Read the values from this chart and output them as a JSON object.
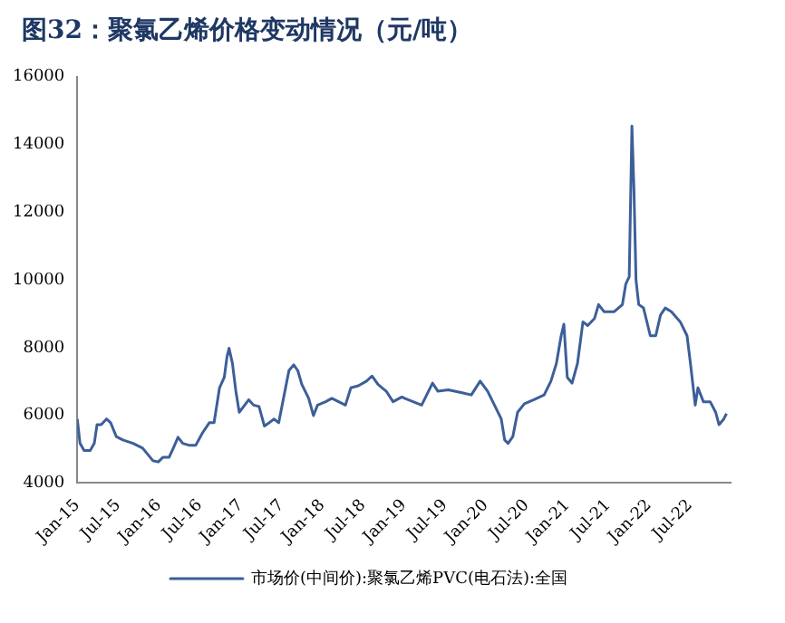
{
  "chart_data": {
    "type": "line",
    "title": "图32：聚氯乙烯价格变动情况（元/吨）",
    "x": [
      "2015-01-01",
      "2015-01-13",
      "2015-02-01",
      "2015-02-28",
      "2015-03-16",
      "2015-03-28",
      "2015-04-16",
      "2015-05-10",
      "2015-05-28",
      "2015-06-23",
      "2015-07-22",
      "2015-09-07",
      "2015-10-19",
      "2015-12-04",
      "2015-12-28",
      "2016-01-19",
      "2016-02-16",
      "2016-03-07",
      "2016-03-25",
      "2016-04-16",
      "2016-05-16",
      "2016-06-13",
      "2016-07-13",
      "2016-08-13",
      "2016-09-04",
      "2016-09-28",
      "2016-10-19",
      "2016-11-01",
      "2016-11-10",
      "2016-11-25",
      "2016-12-10",
      "2016-12-25",
      "2017-01-19",
      "2017-02-07",
      "2017-02-28",
      "2017-03-22",
      "2017-04-16",
      "2017-05-07",
      "2017-05-28",
      "2017-06-19",
      "2017-07-13",
      "2017-08-04",
      "2017-08-25",
      "2017-09-13",
      "2017-10-01",
      "2017-11-01",
      "2017-11-22",
      "2017-12-10",
      "2018-01-16",
      "2018-02-13",
      "2018-03-13",
      "2018-04-13",
      "2018-05-07",
      "2018-06-10",
      "2018-07-16",
      "2018-08-10",
      "2018-09-07",
      "2018-10-13",
      "2018-11-13",
      "2018-12-22",
      "2019-01-04",
      "2019-03-19",
      "2019-05-07",
      "2019-06-01",
      "2019-07-16",
      "2019-09-13",
      "2019-10-28",
      "2019-12-07",
      "2020-01-10",
      "2020-02-10",
      "2020-03-10",
      "2020-03-25",
      "2020-04-10",
      "2020-05-01",
      "2020-05-22",
      "2020-06-22",
      "2020-08-04",
      "2020-09-19",
      "2020-10-19",
      "2020-11-13",
      "2020-12-04",
      "2020-12-16",
      "2021-01-01",
      "2021-01-22",
      "2021-02-16",
      "2021-03-10",
      "2021-04-01",
      "2021-05-01",
      "2021-05-19",
      "2021-06-13",
      "2021-07-28",
      "2021-09-04",
      "2021-09-19",
      "2021-10-04",
      "2021-10-16",
      "2021-10-25",
      "2021-11-04",
      "2021-11-16",
      "2021-12-07",
      "2022-01-07",
      "2022-02-01",
      "2022-02-22",
      "2022-03-13",
      "2022-04-10",
      "2022-05-19",
      "2022-06-19",
      "2022-07-04",
      "2022-07-25",
      "2022-08-07",
      "2022-09-01",
      "2022-10-01",
      "2022-10-25",
      "2022-11-10",
      "2022-12-01",
      "2022-12-13"
    ],
    "series": [
      {
        "name": "市场价(中间价):聚氯乙烯PVC(电石法):全国",
        "color": "#3c5f99",
        "values": [
          5890,
          5170,
          4960,
          4960,
          5170,
          5720,
          5720,
          5890,
          5780,
          5370,
          5270,
          5170,
          5030,
          4660,
          4620,
          4760,
          4760,
          5070,
          5350,
          5170,
          5110,
          5110,
          5480,
          5780,
          5780,
          6810,
          7120,
          7730,
          7980,
          7530,
          6710,
          6090,
          6300,
          6460,
          6300,
          6260,
          5680,
          5780,
          5890,
          5780,
          6600,
          7320,
          7490,
          7320,
          6910,
          6500,
          5990,
          6300,
          6400,
          6500,
          6400,
          6300,
          6810,
          6870,
          7010,
          7160,
          6910,
          6710,
          6400,
          6540,
          6500,
          6300,
          6950,
          6710,
          6750,
          6670,
          6600,
          7010,
          6710,
          6300,
          5890,
          5270,
          5170,
          5370,
          6090,
          6340,
          6460,
          6600,
          7010,
          7530,
          8350,
          8690,
          7120,
          6950,
          7530,
          8760,
          8650,
          8860,
          9270,
          9060,
          9060,
          9270,
          9880,
          10090,
          14540,
          12650,
          9990,
          9270,
          9170,
          8350,
          8350,
          8960,
          9170,
          9060,
          8760,
          8350,
          7530,
          6300,
          6810,
          6400,
          6400,
          6090,
          5720,
          5890,
          6050
        ]
      }
    ],
    "xlim": [
      "2015-01-01",
      "2022-12-31"
    ],
    "xticks": [
      {
        "value": "2015-01",
        "label": "Jan-15"
      },
      {
        "value": "2015-07",
        "label": "Jul-15"
      },
      {
        "value": "2016-01",
        "label": "Jan-16"
      },
      {
        "value": "2016-07",
        "label": "Jul-16"
      },
      {
        "value": "2017-01",
        "label": "Jan-17"
      },
      {
        "value": "2017-07",
        "label": "Jul-17"
      },
      {
        "value": "2018-01",
        "label": "Jan-18"
      },
      {
        "value": "2018-07",
        "label": "Jul-18"
      },
      {
        "value": "2019-01",
        "label": "Jan-19"
      },
      {
        "value": "2019-07",
        "label": "Jul-19"
      },
      {
        "value": "2020-01",
        "label": "Jan-20"
      },
      {
        "value": "2020-07",
        "label": "Jul-20"
      },
      {
        "value": "2021-01",
        "label": "Jan-21"
      },
      {
        "value": "2021-07",
        "label": "Jul-21"
      },
      {
        "value": "2022-01",
        "label": "Jan-22"
      },
      {
        "value": "2022-07",
        "label": "Jul-22"
      }
    ],
    "ylim": [
      4000,
      16000
    ],
    "yticks": [
      4000,
      6000,
      8000,
      10000,
      12000,
      14000,
      16000
    ],
    "grid": false,
    "legend": "bottom",
    "marker": "none",
    "line_style": "solid"
  }
}
